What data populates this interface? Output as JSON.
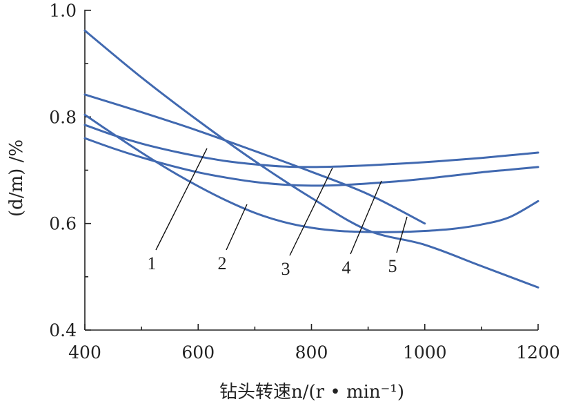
{
  "chart_data": {
    "type": "line",
    "xlabel": "钻头转速n/(r • min⁻¹)",
    "ylabel": "(d/m) /%",
    "xlim": [
      400,
      1200
    ],
    "ylim": [
      0.4,
      1.0
    ],
    "x_ticks": [
      "400",
      "600",
      "800",
      "1000",
      "1200"
    ],
    "y_ticks": [
      "0.4",
      "0.6",
      "0.8",
      "1.0"
    ],
    "grid": false,
    "line_color": "#4169b0",
    "series": [
      {
        "name": "1",
        "x": [
          400,
          450,
          500,
          550,
          600,
          650,
          700,
          750,
          800,
          850,
          900,
          950,
          1000,
          1050,
          1100,
          1150,
          1200
        ],
        "y": [
          0.785,
          0.766,
          0.75,
          0.737,
          0.726,
          0.717,
          0.711,
          0.707,
          0.706,
          0.707,
          0.709,
          0.712,
          0.715,
          0.719,
          0.723,
          0.728,
          0.733
        ]
      },
      {
        "name": "2",
        "x": [
          400,
          450,
          500,
          550,
          600,
          650,
          700,
          750,
          800,
          850,
          900,
          950,
          1000,
          1050,
          1100,
          1150,
          1200
        ],
        "y": [
          0.804,
          0.768,
          0.733,
          0.7,
          0.67,
          0.643,
          0.62,
          0.603,
          0.592,
          0.586,
          0.584,
          0.584,
          0.586,
          0.59,
          0.598,
          0.612,
          0.642
        ]
      },
      {
        "name": "3",
        "x": [
          400,
          500,
          600,
          700,
          800,
          900,
          1000,
          1100,
          1200
        ],
        "y": [
          0.962,
          0.874,
          0.793,
          0.717,
          0.648,
          0.587,
          0.56,
          0.52,
          0.48
        ]
      },
      {
        "name": "4",
        "x": [
          400,
          450,
          500,
          550,
          600,
          650,
          700,
          750,
          800,
          850,
          900,
          950,
          1000,
          1050,
          1100,
          1150,
          1200
        ],
        "y": [
          0.76,
          0.741,
          0.724,
          0.709,
          0.696,
          0.686,
          0.678,
          0.673,
          0.671,
          0.672,
          0.675,
          0.679,
          0.684,
          0.69,
          0.696,
          0.701,
          0.706
        ]
      },
      {
        "name": "5",
        "x": [
          400,
          500,
          600,
          700,
          800,
          900,
          1000
        ],
        "y": [
          0.842,
          0.809,
          0.774,
          0.736,
          0.697,
          0.655,
          0.6
        ]
      }
    ]
  }
}
